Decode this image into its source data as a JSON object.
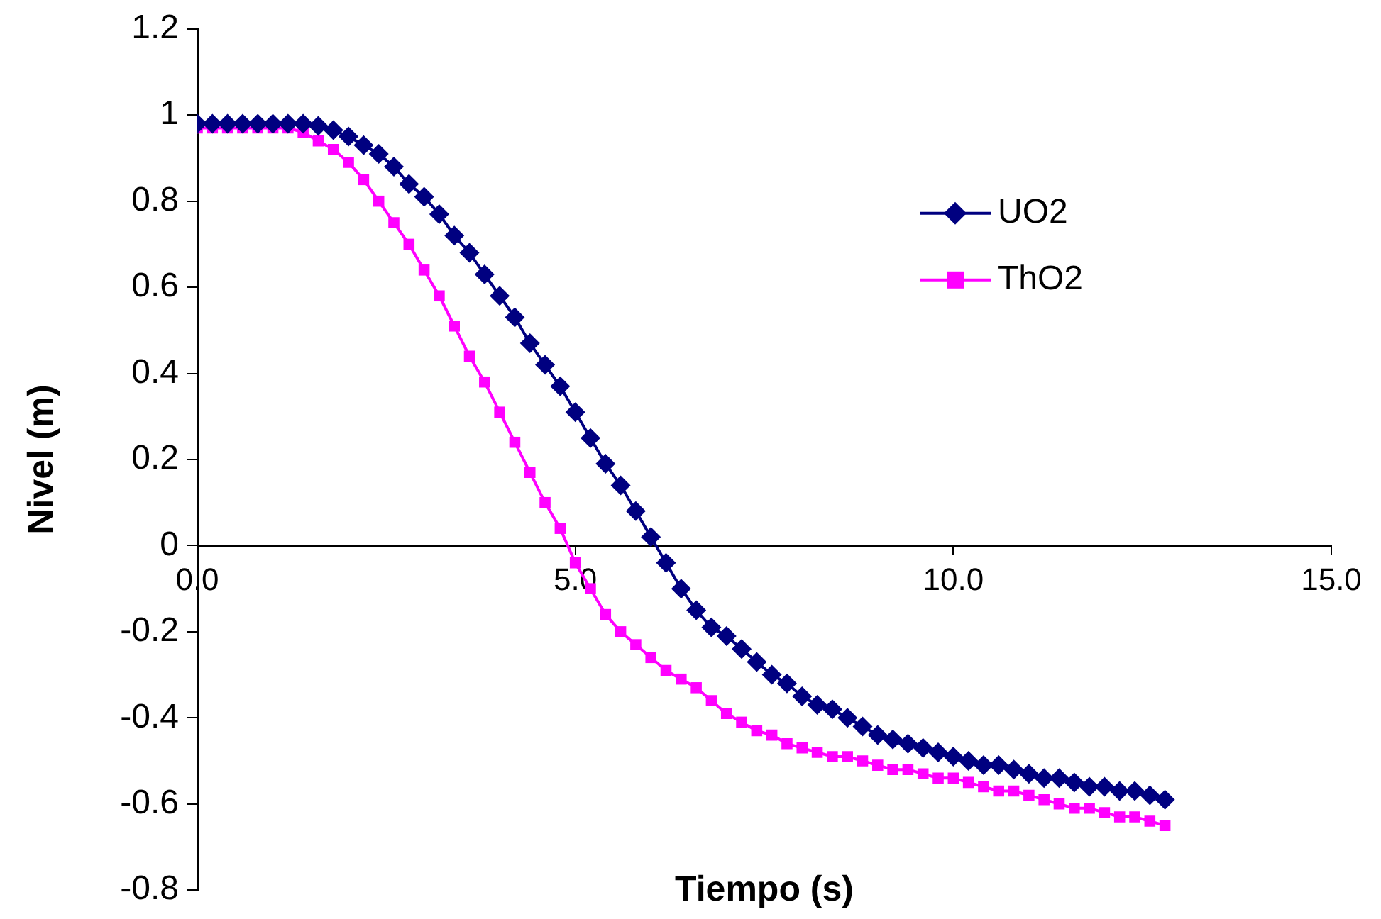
{
  "chart_data": {
    "type": "line",
    "xlabel": "Tiempo (s)",
    "ylabel": "Nivel (m)",
    "x": [
      0,
      0.2,
      0.4,
      0.6,
      0.8,
      1,
      1.2,
      1.4,
      1.6,
      1.8,
      2,
      2.2,
      2.4,
      2.6,
      2.8,
      3,
      3.2,
      3.4,
      3.6,
      3.8,
      4,
      4.2,
      4.4,
      4.6,
      4.8,
      5,
      5.2,
      5.4,
      5.6,
      5.8,
      6,
      6.2,
      6.4,
      6.6,
      6.8,
      7,
      7.2,
      7.4,
      7.6,
      7.8,
      8,
      8.2,
      8.4,
      8.6,
      8.8,
      9,
      9.2,
      9.4,
      9.6,
      9.8,
      10,
      10.2,
      10.4,
      10.6,
      10.8,
      11,
      11.2,
      11.4,
      11.6,
      11.8,
      12,
      12.2,
      12.4,
      12.6,
      12.8
    ],
    "series": [
      {
        "name": "UO2",
        "color": "#000080",
        "marker": "diamond",
        "values": [
          0.98,
          0.98,
          0.98,
          0.98,
          0.98,
          0.98,
          0.98,
          0.98,
          0.975,
          0.965,
          0.95,
          0.93,
          0.91,
          0.88,
          0.84,
          0.81,
          0.77,
          0.72,
          0.68,
          0.63,
          0.58,
          0.53,
          0.47,
          0.42,
          0.37,
          0.31,
          0.25,
          0.19,
          0.14,
          0.08,
          0.02,
          -0.04,
          -0.1,
          -0.15,
          -0.19,
          -0.21,
          -0.24,
          -0.27,
          -0.3,
          -0.32,
          -0.35,
          -0.37,
          -0.38,
          -0.4,
          -0.42,
          -0.44,
          -0.45,
          -0.46,
          -0.47,
          -0.48,
          -0.49,
          -0.5,
          -0.51,
          -0.51,
          -0.52,
          -0.53,
          -0.54,
          -0.54,
          -0.55,
          -0.56,
          -0.56,
          -0.57,
          -0.57,
          -0.58,
          -0.59
        ]
      },
      {
        "name": "ThO2",
        "color": "#ff00ff",
        "marker": "square",
        "values": [
          0.97,
          0.97,
          0.97,
          0.97,
          0.97,
          0.97,
          0.97,
          0.96,
          0.94,
          0.92,
          0.89,
          0.85,
          0.8,
          0.75,
          0.7,
          0.64,
          0.58,
          0.51,
          0.44,
          0.38,
          0.31,
          0.24,
          0.17,
          0.1,
          0.04,
          -0.04,
          -0.1,
          -0.16,
          -0.2,
          -0.23,
          -0.26,
          -0.29,
          -0.31,
          -0.33,
          -0.36,
          -0.39,
          -0.41,
          -0.43,
          -0.44,
          -0.46,
          -0.47,
          -0.48,
          -0.49,
          -0.49,
          -0.5,
          -0.51,
          -0.52,
          -0.52,
          -0.53,
          -0.54,
          -0.54,
          -0.55,
          -0.56,
          -0.57,
          -0.57,
          -0.58,
          -0.59,
          -0.6,
          -0.61,
          -0.61,
          -0.62,
          -0.63,
          -0.63,
          -0.64,
          -0.65
        ]
      }
    ],
    "xlim": [
      0,
      15
    ],
    "xticks": [
      {
        "value": 0,
        "label": "0.0"
      },
      {
        "value": 5,
        "label": "5.0"
      },
      {
        "value": 10,
        "label": "10.0"
      },
      {
        "value": 15,
        "label": "15.0"
      }
    ],
    "ylim": [
      -0.8,
      1.2
    ],
    "yticks": [
      -0.8,
      -0.6,
      -0.4,
      -0.2,
      0,
      0.2,
      0.4,
      0.6,
      0.8,
      1,
      1.2
    ],
    "grid": false,
    "legend": "top right",
    "line_style": "solid"
  }
}
